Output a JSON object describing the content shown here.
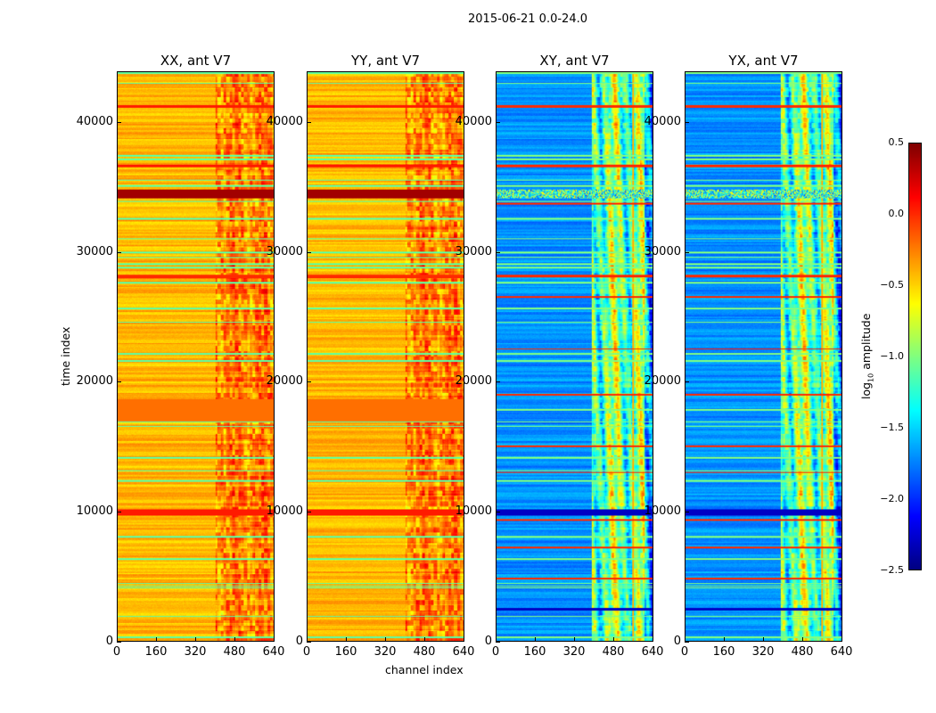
{
  "figure_title": "2015-06-21 0.0-24.0",
  "chart_data": {
    "type": "heatmap",
    "title": "2015-06-21 0.0-24.0",
    "xlabel": "channel index",
    "ylabel": "time index",
    "xlim": [
      0,
      640
    ],
    "ylim": [
      0,
      43900
    ],
    "xticks": [
      "0",
      "160",
      "320",
      "480",
      "640"
    ],
    "yticks": [
      "0",
      "10000",
      "20000",
      "30000",
      "40000"
    ],
    "colormap": "jet",
    "colorbar": {
      "label": "log10 amplitude",
      "label_base": "log",
      "label_sub": "10",
      "label_rest": " amplitude",
      "range": [
        -2.5,
        0.5
      ],
      "ticks": [
        "0.5",
        "0.0",
        "−0.5",
        "−1.0",
        "−1.5",
        "−2.0",
        "−2.5"
      ]
    },
    "panels": [
      {
        "title": "XX, ant V7",
        "base": -0.42,
        "active_band_channels": [
          400,
          640
        ],
        "active_level": 0.3,
        "bands": [
          [
            34200,
            34900,
            0.4
          ],
          [
            9700,
            10200,
            0.05
          ],
          [
            17000,
            18700,
            -0.2
          ],
          [
            28000,
            28300,
            0.0
          ],
          [
            36600,
            36800,
            0.05
          ],
          [
            41200,
            41400,
            0.05
          ]
        ]
      },
      {
        "title": "YY, ant V7",
        "base": -0.42,
        "active_band_channels": [
          400,
          640
        ],
        "active_level": 0.3,
        "bands": [
          [
            34200,
            34900,
            0.4
          ],
          [
            9700,
            10200,
            0.05
          ],
          [
            17000,
            18700,
            -0.2
          ],
          [
            28000,
            28300,
            0.0
          ],
          [
            36600,
            36800,
            0.05
          ],
          [
            41200,
            41400,
            0.05
          ]
        ]
      },
      {
        "title": "XY, ant V7",
        "base": -1.7,
        "active_band_channels": [
          390,
          640
        ],
        "active_level": 1.2,
        "bands": [
          [
            34200,
            34900,
            -1.3
          ],
          [
            9700,
            10200,
            -2.3
          ],
          [
            41200,
            41400,
            0.0
          ],
          [
            36600,
            36800,
            0.0
          ],
          [
            33700,
            33850,
            0.0
          ],
          [
            28100,
            28300,
            0.0
          ],
          [
            26500,
            26650,
            0.0
          ],
          [
            22500,
            22600,
            0.0
          ],
          [
            19000,
            19100,
            0.0
          ],
          [
            15000,
            15100,
            0.0
          ],
          [
            13000,
            13100,
            0.0
          ],
          [
            9300,
            9400,
            0.0
          ],
          [
            7200,
            7300,
            0.0
          ],
          [
            4800,
            4900,
            0.0
          ],
          [
            2400,
            2600,
            -2.3
          ]
        ]
      },
      {
        "title": "YX, ant V7",
        "base": -1.7,
        "active_band_channels": [
          390,
          640
        ],
        "active_level": 1.2,
        "bands": [
          [
            34200,
            34900,
            -1.3
          ],
          [
            9700,
            10200,
            -2.3
          ],
          [
            41200,
            41400,
            0.0
          ],
          [
            36600,
            36800,
            0.0
          ],
          [
            33700,
            33850,
            0.0
          ],
          [
            28100,
            28300,
            0.0
          ],
          [
            26500,
            26650,
            0.0
          ],
          [
            22500,
            22600,
            0.0
          ],
          [
            19000,
            19100,
            0.0
          ],
          [
            15000,
            15100,
            0.0
          ],
          [
            13000,
            13100,
            0.0
          ],
          [
            9300,
            9400,
            0.0
          ],
          [
            7200,
            7300,
            0.0
          ],
          [
            4800,
            4900,
            0.0
          ],
          [
            2400,
            2600,
            -2.3
          ]
        ]
      }
    ]
  }
}
